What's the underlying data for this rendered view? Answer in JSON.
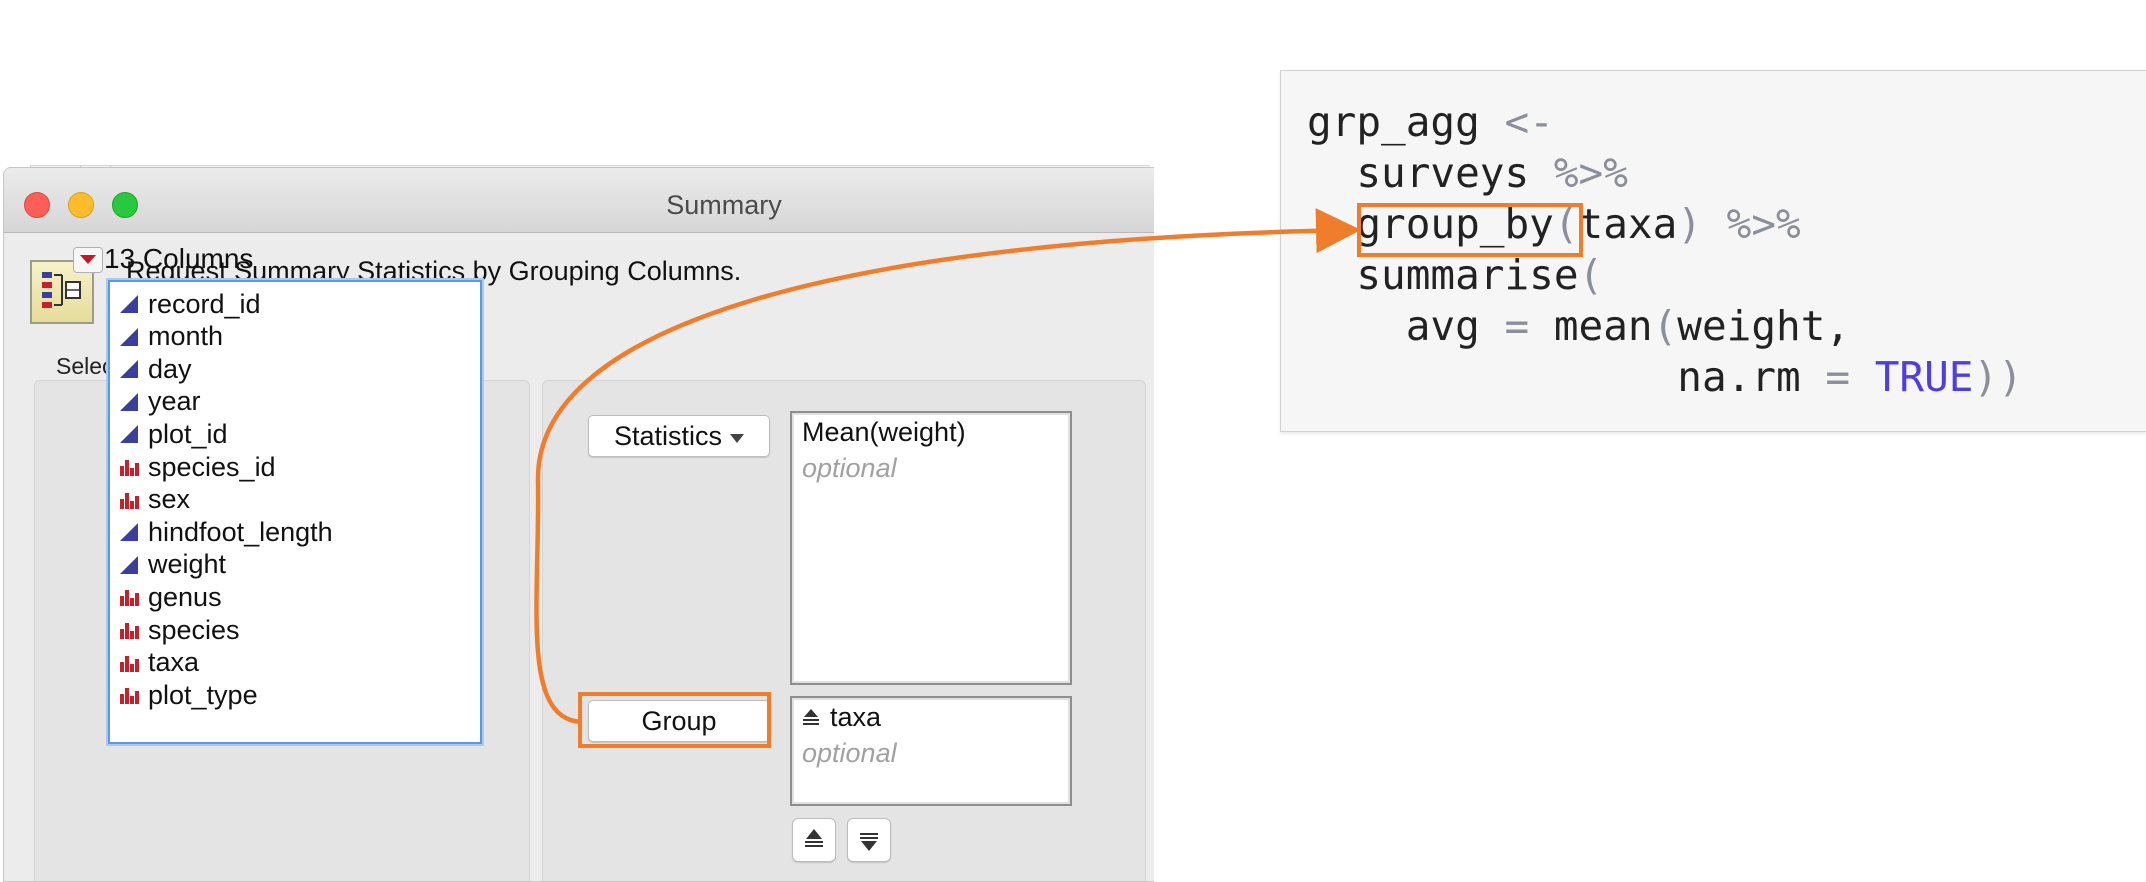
{
  "window": {
    "title": "Summary",
    "header_text": "Request Summary Statistics by Grouping Columns.",
    "select_columns_label": "Select Columns",
    "column_count_label": "13 Columns",
    "columns": [
      {
        "name": "record_id",
        "type": "continuous"
      },
      {
        "name": "month",
        "type": "continuous"
      },
      {
        "name": "day",
        "type": "continuous"
      },
      {
        "name": "year",
        "type": "continuous"
      },
      {
        "name": "plot_id",
        "type": "continuous"
      },
      {
        "name": "species_id",
        "type": "nominal"
      },
      {
        "name": "sex",
        "type": "nominal"
      },
      {
        "name": "hindfoot_length",
        "type": "continuous"
      },
      {
        "name": "weight",
        "type": "continuous"
      },
      {
        "name": "genus",
        "type": "nominal"
      },
      {
        "name": "species",
        "type": "nominal"
      },
      {
        "name": "taxa",
        "type": "nominal"
      },
      {
        "name": "plot_type",
        "type": "nominal"
      }
    ],
    "statistics_button": "Statistics",
    "statistics_value": "Mean(weight)",
    "statistics_placeholder": "optional",
    "group_button": "Group",
    "group_value": "taxa",
    "group_placeholder": "optional"
  },
  "code": {
    "lines": [
      [
        {
          "t": "grp_agg ",
          "c": "plain"
        },
        {
          "t": "<-",
          "c": "op"
        }
      ],
      [
        {
          "t": "  surveys ",
          "c": "plain"
        },
        {
          "t": "%>%",
          "c": "op"
        }
      ],
      [
        {
          "t": "  group_by",
          "c": "plain"
        },
        {
          "t": "(",
          "c": "op"
        },
        {
          "t": "taxa",
          "c": "plain"
        },
        {
          "t": ") %>%",
          "c": "op"
        }
      ],
      [
        {
          "t": "  summarise",
          "c": "plain"
        },
        {
          "t": "(",
          "c": "op"
        }
      ],
      [
        {
          "t": "    avg ",
          "c": "plain"
        },
        {
          "t": "=",
          "c": "op"
        },
        {
          "t": " mean",
          "c": "plain"
        },
        {
          "t": "(",
          "c": "op"
        },
        {
          "t": "weight,",
          "c": "plain"
        }
      ],
      [
        {
          "t": "               na.rm ",
          "c": "plain"
        },
        {
          "t": "=",
          "c": "op"
        },
        {
          "t": " ",
          "c": "plain"
        },
        {
          "t": "TRUE",
          "c": "kw"
        },
        {
          "t": "))",
          "c": "op"
        }
      ]
    ]
  },
  "colors": {
    "highlight": "#ef7d2c",
    "keyword": "#4f3de0",
    "operator": "#8a8f9a",
    "continuous_icon": "#3a3f9e",
    "nominal_icon": "#c8202a"
  }
}
